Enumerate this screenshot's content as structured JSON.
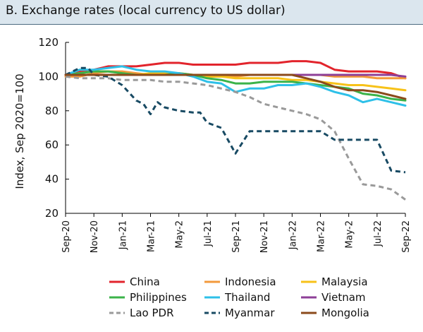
{
  "chart_data": {
    "type": "line",
    "title": "B. Exchange rates (local currency to US dollar)",
    "xlabel": "",
    "ylabel": "Index, Sep 2020=100",
    "ylim": [
      20,
      120
    ],
    "yticks": [
      20,
      40,
      60,
      80,
      100,
      120
    ],
    "grid": false,
    "legend_position": "bottom",
    "x_start": 0,
    "x_end": 24,
    "x_tick_labels": [
      "Sep-20",
      "Nov-20",
      "Jan-21",
      "Mar-21",
      "May-2",
      "Jul-21",
      "Sep-21",
      "Nov-21",
      "Jan-22",
      "Mar-22",
      "May-2",
      "Jul-22",
      "Sep-22"
    ],
    "series": [
      {
        "name": "China",
        "color": "#e2242c",
        "dash": false,
        "x": [
          0,
          1,
          2,
          3,
          4,
          5,
          6,
          7,
          8,
          9,
          10,
          11,
          12,
          13,
          14,
          15,
          16,
          17,
          18,
          19,
          20,
          21,
          22,
          23,
          24
        ],
        "y": [
          101,
          103,
          104,
          106,
          106,
          106,
          107,
          108,
          108,
          107,
          107,
          107,
          107,
          108,
          108,
          108,
          109,
          109,
          108,
          104,
          103,
          103,
          103,
          102,
          99
        ]
      },
      {
        "name": "Indonesia",
        "color": "#f39a3c",
        "dash": false,
        "x": [
          0,
          1,
          2,
          3,
          4,
          5,
          6,
          7,
          8,
          9,
          10,
          11,
          12,
          13,
          14,
          15,
          16,
          17,
          18,
          19,
          20,
          21,
          22,
          23,
          24
        ],
        "y": [
          100,
          100,
          102,
          103,
          103,
          102,
          101,
          101,
          101,
          101,
          100,
          100,
          100,
          101,
          101,
          101,
          101,
          101,
          101,
          100,
          100,
          100,
          99,
          99,
          99
        ]
      },
      {
        "name": "Malaysia",
        "color": "#f7c219",
        "dash": false,
        "x": [
          0,
          1,
          2,
          3,
          4,
          5,
          6,
          7,
          8,
          9,
          10,
          11,
          12,
          13,
          14,
          15,
          16,
          17,
          18,
          19,
          20,
          21,
          22,
          23,
          24
        ],
        "y": [
          101,
          102,
          103,
          103,
          102,
          101,
          102,
          102,
          102,
          101,
          100,
          100,
          99,
          99,
          99,
          99,
          98,
          98,
          97,
          96,
          95,
          95,
          94,
          93,
          92
        ]
      },
      {
        "name": "Philippines",
        "color": "#3bb34a",
        "dash": false,
        "x": [
          0,
          1,
          2,
          3,
          4,
          5,
          6,
          7,
          8,
          9,
          10,
          11,
          12,
          13,
          14,
          15,
          16,
          17,
          18,
          19,
          20,
          21,
          22,
          23,
          24
        ],
        "y": [
          101,
          102,
          103,
          103,
          102,
          101,
          101,
          101,
          102,
          101,
          99,
          98,
          96,
          96,
          97,
          97,
          97,
          96,
          95,
          94,
          93,
          90,
          89,
          87,
          86
        ]
      },
      {
        "name": "Thailand",
        "color": "#2ec0e8",
        "dash": false,
        "x": [
          0,
          1,
          2,
          3,
          4,
          5,
          6,
          7,
          8,
          9,
          10,
          11,
          12,
          13,
          14,
          15,
          16,
          17,
          18,
          19,
          20,
          21,
          22,
          23,
          24
        ],
        "y": [
          101,
          104,
          104,
          105,
          106,
          104,
          103,
          103,
          102,
          100,
          97,
          96,
          91,
          93,
          93,
          95,
          95,
          96,
          94,
          91,
          89,
          85,
          87,
          85,
          83
        ]
      },
      {
        "name": "Vietnam",
        "color": "#8e3f97",
        "dash": false,
        "x": [
          0,
          1,
          2,
          3,
          4,
          5,
          6,
          7,
          8,
          9,
          10,
          11,
          12,
          13,
          14,
          15,
          16,
          17,
          18,
          19,
          20,
          21,
          22,
          23,
          24
        ],
        "y": [
          101,
          101,
          101,
          101,
          101,
          101,
          101,
          101,
          101,
          101,
          101,
          101,
          101,
          101,
          101,
          101,
          101,
          101,
          101,
          101,
          101,
          101,
          101,
          101,
          100
        ]
      },
      {
        "name": "Lao PDR",
        "color": "#9a9a9a",
        "dash": true,
        "x": [
          0,
          1,
          2,
          3,
          4,
          5,
          6,
          7,
          8,
          9,
          10,
          11,
          12,
          13,
          14,
          15,
          16,
          17,
          18,
          19,
          20,
          21,
          22,
          23,
          24
        ],
        "y": [
          100,
          99,
          99,
          99,
          98,
          98,
          98,
          97,
          97,
          96,
          95,
          93,
          91,
          88,
          84,
          82,
          80,
          78,
          75,
          68,
          52,
          37,
          36,
          34,
          28
        ]
      },
      {
        "name": "Myanmar",
        "color": "#184a63",
        "dash": true,
        "x": [
          0,
          1,
          1.6,
          2,
          3,
          4,
          5,
          5.5,
          6,
          6.5,
          7,
          8,
          9,
          9.5,
          10,
          11,
          12,
          13,
          14,
          15,
          16,
          17,
          18,
          19,
          20,
          21,
          22,
          23,
          24
        ],
        "y": [
          101,
          105,
          105,
          101,
          100,
          95,
          86,
          84,
          78,
          85,
          82,
          80,
          79,
          79,
          73,
          70,
          55,
          68,
          68,
          68,
          68,
          68,
          68,
          63,
          63,
          63,
          63,
          45,
          44
        ]
      },
      {
        "name": "Mongolia",
        "color": "#8b4a1b",
        "dash": false,
        "x": [
          0,
          1,
          2,
          3,
          4,
          5,
          6,
          7,
          8,
          9,
          10,
          11,
          12,
          13,
          14,
          15,
          16,
          17,
          18,
          19,
          20,
          21,
          22,
          23,
          24
        ],
        "y": [
          101,
          101,
          101,
          101,
          101,
          101,
          101,
          101,
          101,
          101,
          101,
          101,
          101,
          101,
          101,
          101,
          101,
          99,
          97,
          94,
          92,
          92,
          91,
          89,
          87
        ]
      }
    ],
    "legend": [
      [
        "China",
        "Indonesia",
        "Malaysia"
      ],
      [
        "Philippines",
        "Thailand",
        "Vietnam"
      ],
      [
        "Lao PDR",
        "Myanmar",
        "Mongolia"
      ]
    ]
  }
}
